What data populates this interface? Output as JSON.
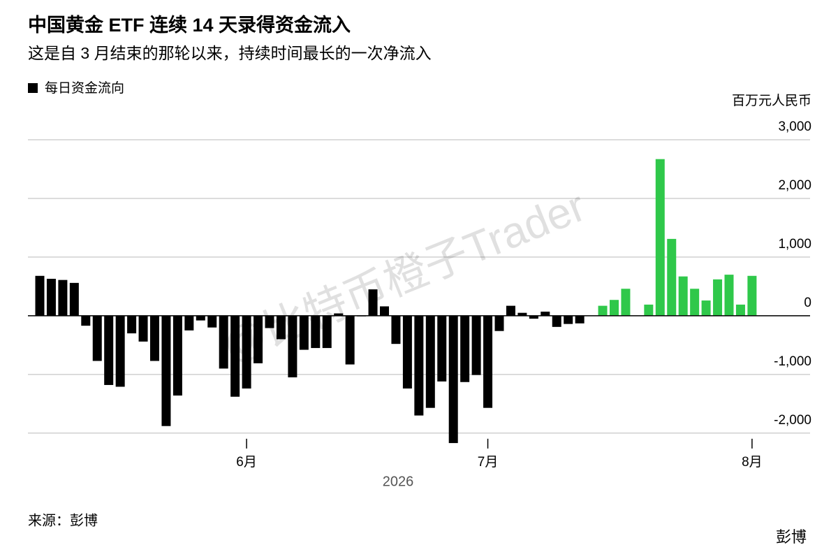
{
  "chart_data": {
    "type": "bar",
    "title": "中国黄金 ETF 连续 14 天录得资金流入",
    "subtitle": "这是自 3 月结束的那轮以来，持续时间最长的一次净流入",
    "y_axis_label": "百万元人民币",
    "x_axis_label": "2026",
    "source": "来源：彭博",
    "brand": "彭博",
    "watermark": "@比特币橙子Trader",
    "categories": [
      null,
      null,
      null,
      null,
      null,
      null,
      null,
      null,
      null,
      null,
      null,
      null,
      null,
      null,
      null,
      null,
      null,
      null,
      "6月",
      null,
      null,
      null,
      null,
      null,
      null,
      null,
      null,
      null,
      null,
      null,
      null,
      null,
      null,
      null,
      null,
      null,
      null,
      null,
      null,
      "7月",
      null,
      null,
      null,
      null,
      null,
      null,
      null,
      null,
      null,
      null,
      null,
      null,
      null,
      null,
      null,
      null,
      null,
      null,
      null,
      null,
      null,
      null,
      "8月"
    ],
    "series": [
      {
        "name": "每日资金流向",
        "color": "#000000",
        "values": [
          680,
          630,
          610,
          560,
          -170,
          -770,
          -1180,
          -1210,
          -300,
          -440,
          -770,
          -1880,
          -1360,
          -250,
          -80,
          -200,
          -900,
          -1380,
          -1240,
          -810,
          -210,
          -400,
          -1050,
          -580,
          -550,
          -550,
          40,
          -830,
          -10,
          450,
          160,
          -480,
          -1240,
          -1700,
          -1570,
          -1120,
          -2170,
          -1130,
          -1010,
          -1570,
          -260,
          170,
          50,
          -50,
          70,
          -190,
          -140,
          -130,
          null,
          170,
          270,
          460,
          null,
          190,
          2670,
          1310,
          670,
          460,
          260,
          620,
          700,
          190,
          680
        ],
        "colors": [
          "#000000",
          "#000000",
          "#000000",
          "#000000",
          "#000000",
          "#000000",
          "#000000",
          "#000000",
          "#000000",
          "#000000",
          "#000000",
          "#000000",
          "#000000",
          "#000000",
          "#000000",
          "#000000",
          "#000000",
          "#000000",
          "#000000",
          "#000000",
          "#000000",
          "#000000",
          "#000000",
          "#000000",
          "#000000",
          "#000000",
          "#000000",
          "#000000",
          "#000000",
          "#000000",
          "#000000",
          "#000000",
          "#000000",
          "#000000",
          "#000000",
          "#000000",
          "#000000",
          "#000000",
          "#000000",
          "#000000",
          "#000000",
          "#000000",
          "#000000",
          "#000000",
          "#000000",
          "#000000",
          "#000000",
          "#000000",
          "#2fc84a",
          "#2fc84a",
          "#2fc84a",
          "#2fc84a",
          "#2fc84a",
          "#2fc84a",
          "#2fc84a",
          "#2fc84a",
          "#2fc84a",
          "#2fc84a",
          "#2fc84a",
          "#2fc84a",
          "#2fc84a",
          "#2fc84a",
          "#2fc84a"
        ]
      }
    ],
    "ylim": [
      -2300,
      3250
    ],
    "yticks": [
      {
        "value": 3000,
        "label": "3,000"
      },
      {
        "value": 2000,
        "label": "2,000"
      },
      {
        "value": 1000,
        "label": "1,000"
      },
      0,
      {
        "value": -1000,
        "label": "-1,000"
      },
      {
        "value": -2000,
        "label": "-2,000"
      }
    ],
    "grid": true
  }
}
